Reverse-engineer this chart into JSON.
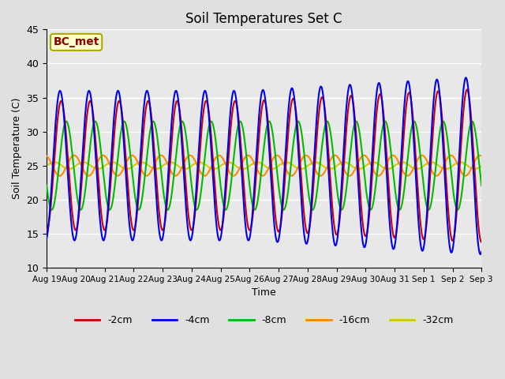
{
  "title": "Soil Temperatures Set C",
  "xlabel": "Time",
  "ylabel": "Soil Temperature (C)",
  "ylim": [
    10,
    45
  ],
  "yticks": [
    10,
    15,
    20,
    25,
    30,
    35,
    40,
    45
  ],
  "annotation": "BC_met",
  "line_colors": {
    "-2cm": "#cc0000",
    "-4cm": "#0000ee",
    "-8cm": "#00bb00",
    "-16cm": "#ff8800",
    "-32cm": "#cccc00"
  },
  "legend_labels": [
    "-2cm",
    "-4cm",
    "-8cm",
    "-16cm",
    "-32cm"
  ],
  "x_tick_labels": [
    "Aug 19",
    "Aug 20",
    "Aug 21",
    "Aug 22",
    "Aug 23",
    "Aug 24",
    "Aug 25",
    "Aug 26",
    "Aug 27",
    "Aug 28",
    "Aug 29",
    "Aug 30",
    "Aug 31",
    "Sep 1",
    "Sep 2",
    "Sep 3"
  ],
  "n_days": 15,
  "mean_temp": 25.0,
  "amplitude_2cm": 9.5,
  "amplitude_4cm": 11.0,
  "amplitude_8cm": 6.5,
  "amplitude_16cm": 1.5,
  "amplitude_32cm": 0.5,
  "phase_2cm": 0.0,
  "phase_4cm": -0.25,
  "phase_8cm": 1.1,
  "phase_16cm": 2.8,
  "phase_32cm": 4.8
}
